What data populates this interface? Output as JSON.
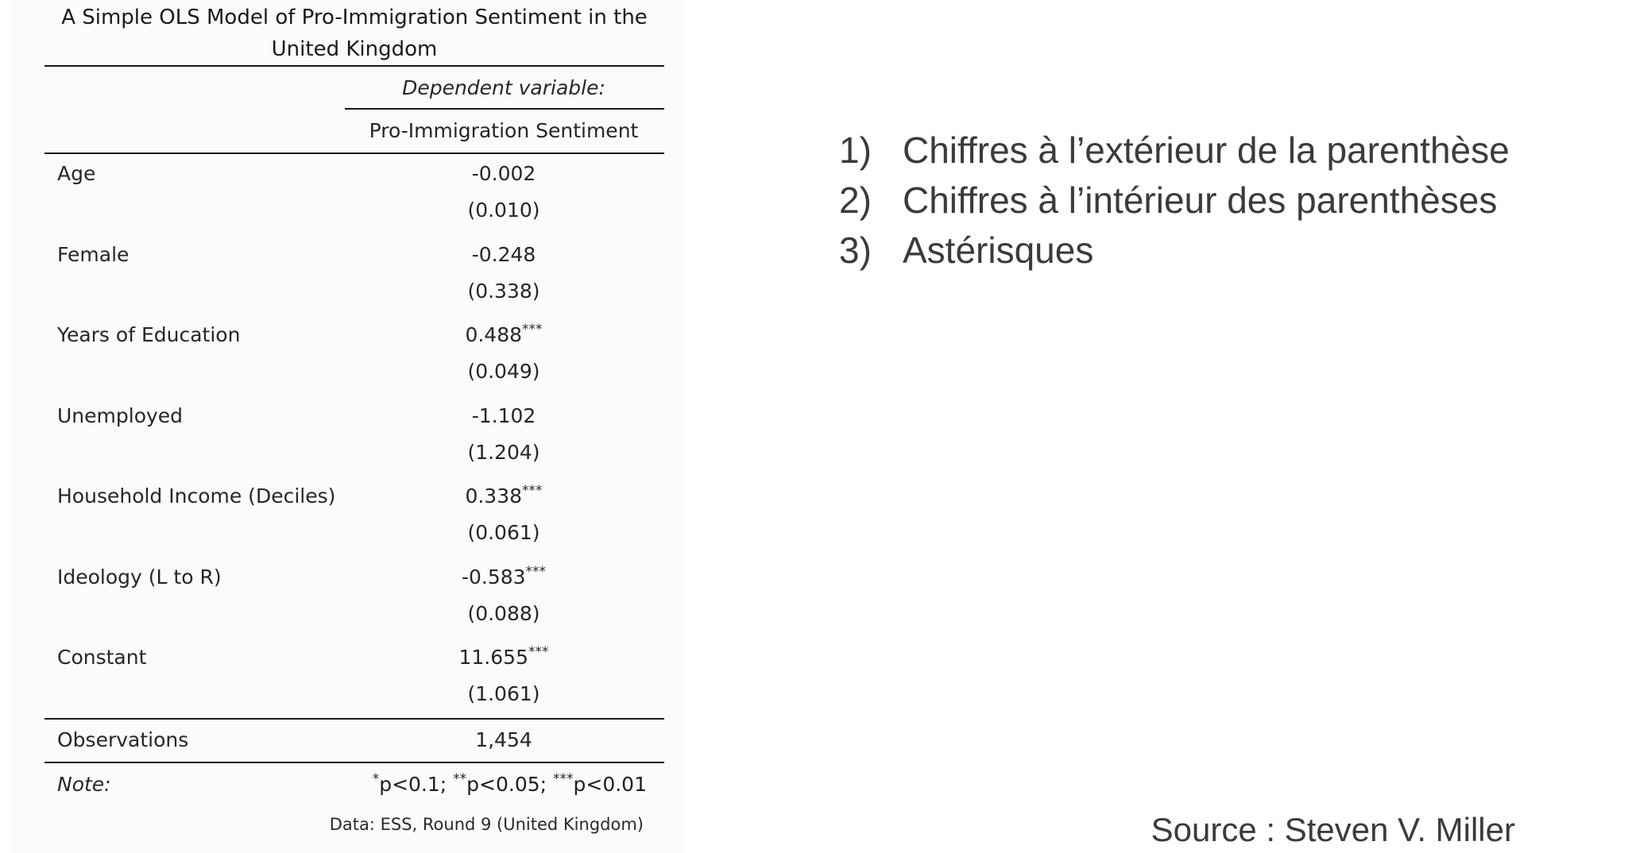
{
  "table": {
    "caption": "A Simple OLS Model of Pro-Immigration Sentiment in the United Kingdom",
    "dependent_variable_label": "Dependent variable:",
    "dependent_variable": "Pro-Immigration Sentiment",
    "rows": [
      {
        "label": "Age",
        "coef": "-0.002",
        "stars": "",
        "se": "(0.010)"
      },
      {
        "label": "Female",
        "coef": "-0.248",
        "stars": "",
        "se": "(0.338)"
      },
      {
        "label": "Years of Education",
        "coef": "0.488",
        "stars": "***",
        "se": "(0.049)"
      },
      {
        "label": "Unemployed",
        "coef": "-1.102",
        "stars": "",
        "se": "(1.204)"
      },
      {
        "label": "Household Income (Deciles)",
        "coef": "0.338",
        "stars": "***",
        "se": "(0.061)"
      },
      {
        "label": "Ideology (L to R)",
        "coef": "-0.583",
        "stars": "***",
        "se": "(0.088)"
      },
      {
        "label": "Constant",
        "coef": "11.655",
        "stars": "***",
        "se": "(1.061)"
      }
    ],
    "observations_label": "Observations",
    "observations_value": "1,454",
    "note_label": "Note:",
    "note_stars_1": "*",
    "note_text_1": "p<0.1; ",
    "note_stars_2": "**",
    "note_text_2": "p<0.05; ",
    "note_stars_3": "***",
    "note_text_3": "p<0.01",
    "data_source": "Data: ESS, Round 9 (United Kingdom)"
  },
  "points": [
    {
      "num": "1)",
      "text": "Chiffres à l’extérieur de la parenthèse"
    },
    {
      "num": "2)",
      "text": "Chiffres à l’intérieur des parenthèses"
    },
    {
      "num": "3)",
      "text": "Astérisques"
    }
  ],
  "source": "Source : Steven V. Miller"
}
